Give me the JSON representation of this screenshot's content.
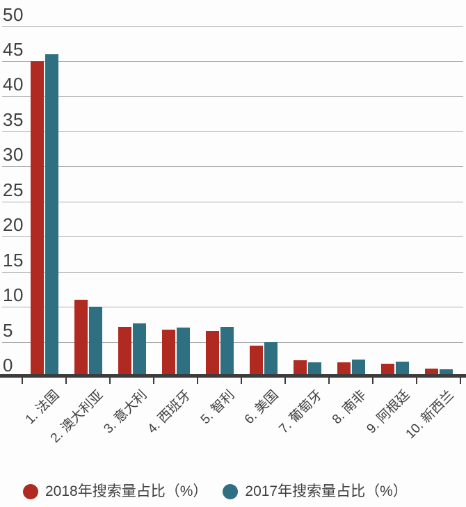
{
  "chart_data": {
    "type": "bar",
    "title": "",
    "xlabel": "",
    "ylabel": "",
    "categories": [
      "1. 法国",
      "2. 澳大利亚",
      "3. 意大利",
      "4. 西班牙",
      "5. 智利",
      "6. 美国",
      "7. 葡萄牙",
      "8. 南非",
      "9. 阿根廷",
      "10. 新西兰"
    ],
    "series": [
      {
        "name": "2018年搜索量占比（%）",
        "color": "#b12a21",
        "values": [
          45,
          11,
          7.1,
          6.7,
          6.5,
          4.5,
          2.4,
          2.1,
          1.9,
          1.2
        ]
      },
      {
        "name": "2017年搜索量占比（%）",
        "color": "#2e7081",
        "values": [
          46,
          10,
          7.6,
          7.0,
          7.1,
          5.0,
          2.1,
          2.5,
          2.2,
          1.1
        ]
      }
    ],
    "ylim": [
      0,
      50
    ],
    "yticks": [
      0,
      5,
      10,
      15,
      20,
      25,
      30,
      35,
      40,
      45,
      50
    ],
    "grid": "horizontal",
    "legend_position": "bottom"
  },
  "colors": {
    "background": "#fdfdfd",
    "axis": "#3c3c3c",
    "gridline": "#ababab",
    "text": "#3f3f3f"
  }
}
